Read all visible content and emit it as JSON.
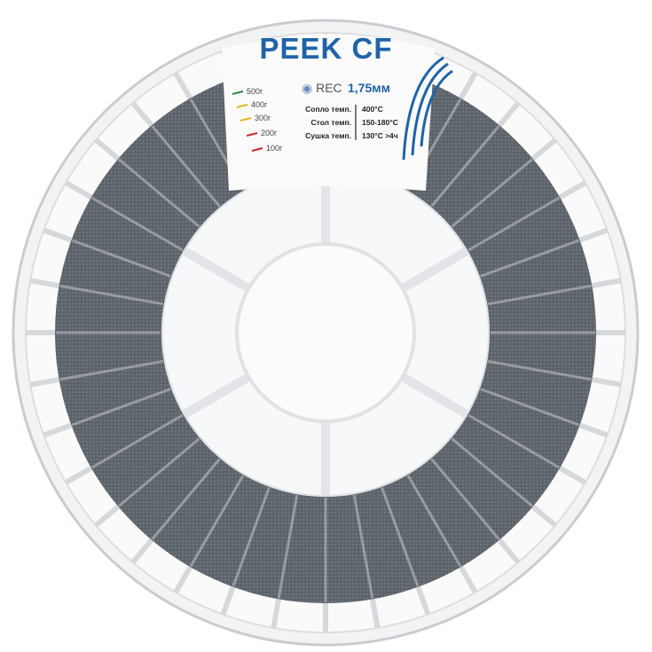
{
  "product": {
    "title": "PEEK CF",
    "brand": "REC",
    "diameter": "1,75мм",
    "specs": [
      {
        "label": "Сопло темп.",
        "value": "400°C"
      },
      {
        "label": "Стол темп.",
        "value": "150-180°C"
      },
      {
        "label": "Сушка темп.",
        "value": "130°C  >4ч"
      }
    ],
    "weight_marks": [
      {
        "label": "500г",
        "color": "#2e8b3a"
      },
      {
        "label": "400г",
        "color": "#e0b820"
      },
      {
        "label": "300г",
        "color": "#e0b820"
      },
      {
        "label": "200г",
        "color": "#c8282a"
      },
      {
        "label": "100г",
        "color": "#c8282a"
      }
    ]
  },
  "colors": {
    "brand_blue": "#1f63a8",
    "filament": "#5b6169"
  }
}
